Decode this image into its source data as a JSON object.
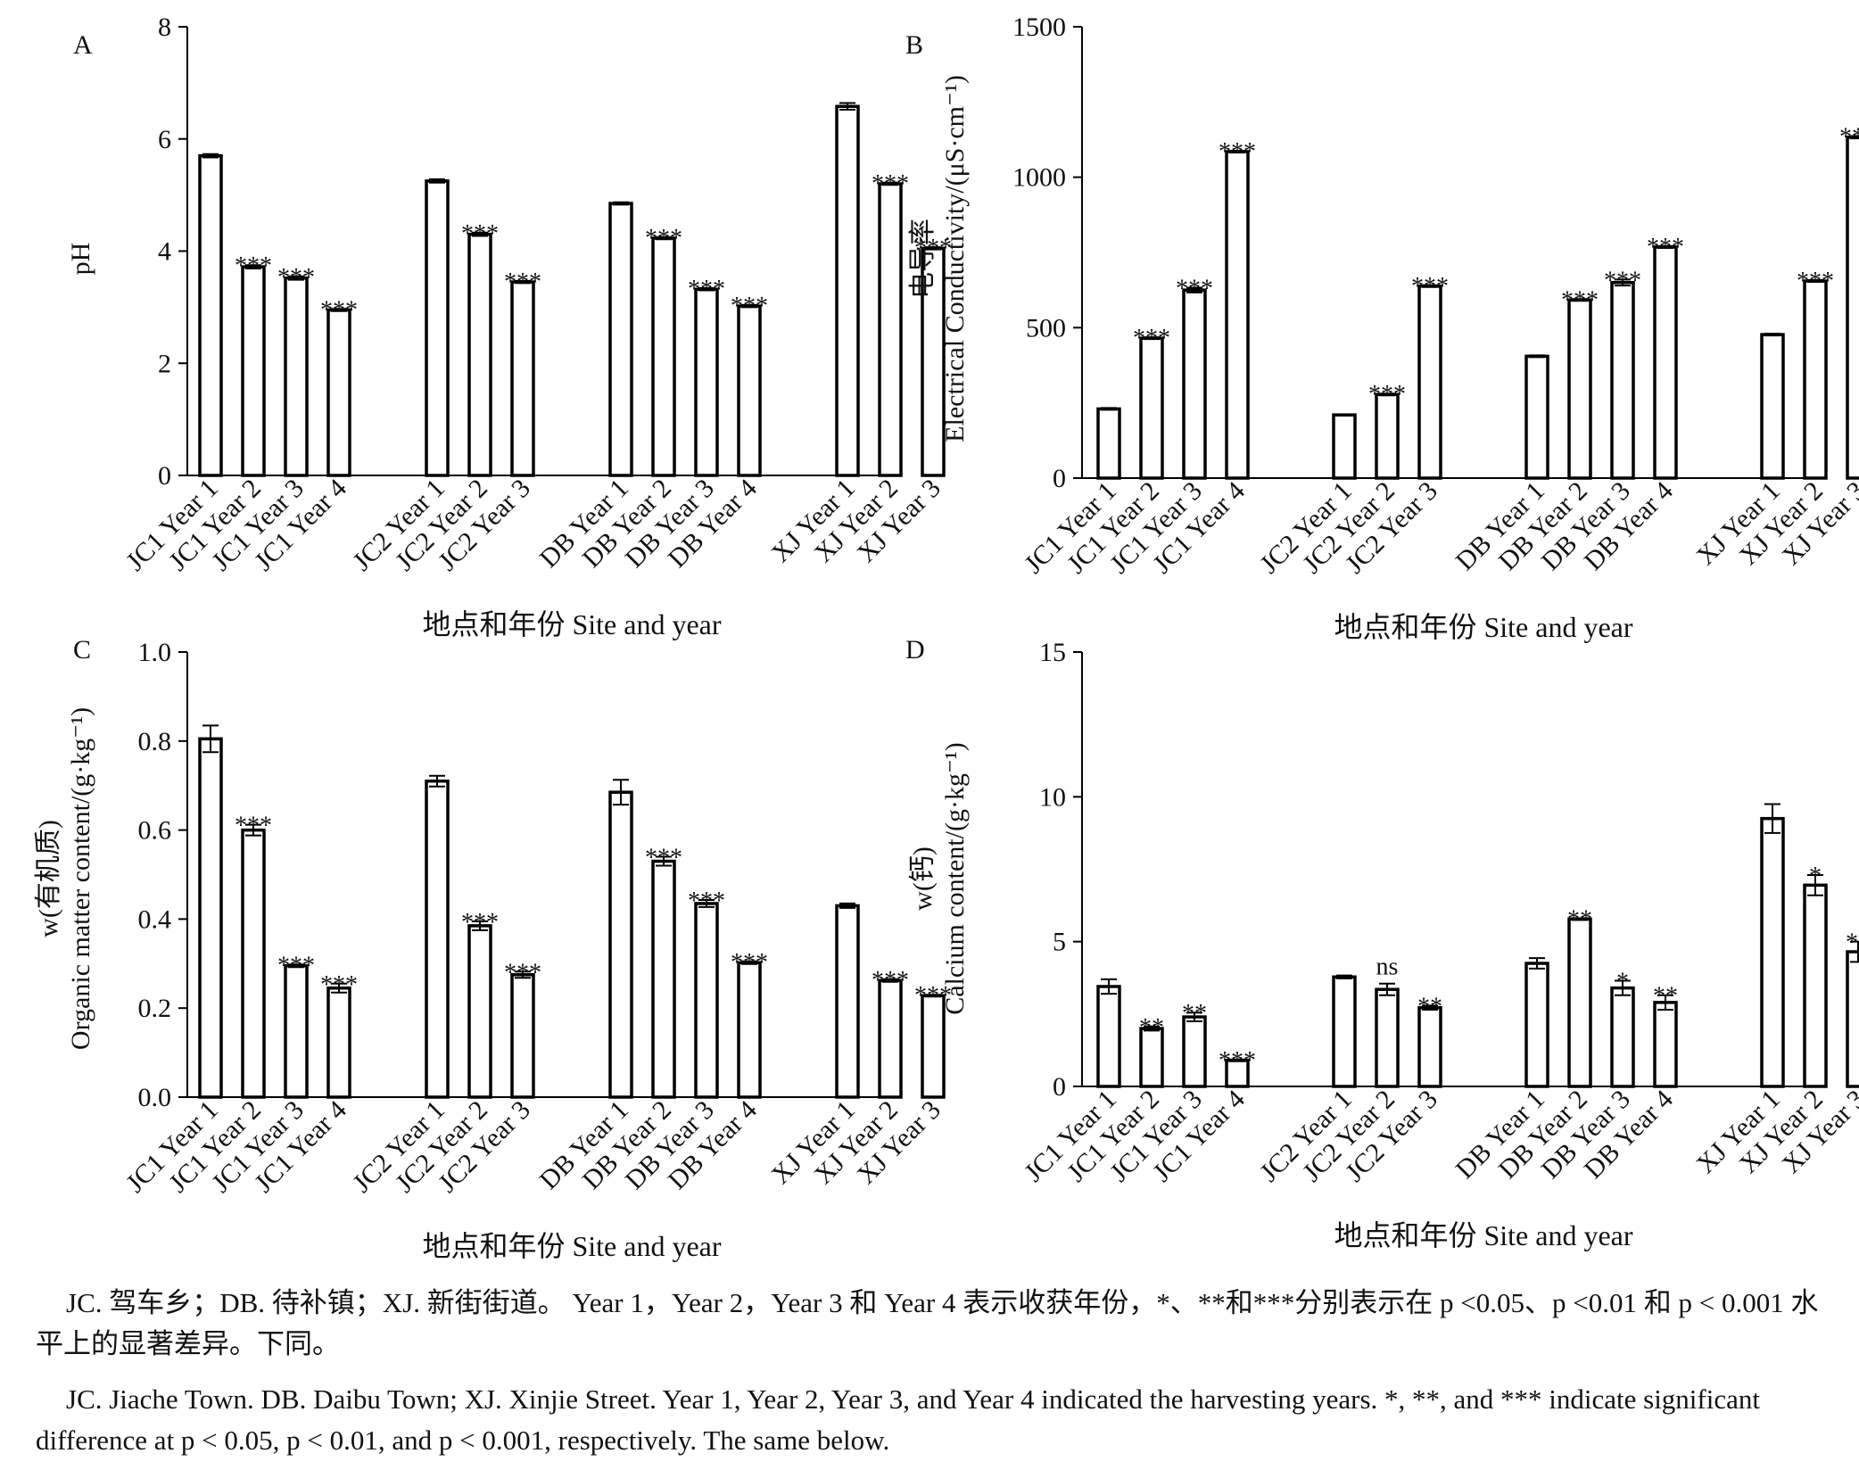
{
  "figure": {
    "xlabel": "地点和年份 Site and year",
    "panels": [
      {
        "letter": "A",
        "ylabel": [
          "pH"
        ],
        "chart_data": {
          "type": "bar",
          "ylim": [
            0,
            8
          ],
          "yticks": [
            0,
            2,
            4,
            6,
            8
          ],
          "ytick_labels": [
            "0",
            "2",
            "4",
            "6",
            "8"
          ],
          "groups": [
            {
              "site": "JC1",
              "bars": [
                {
                  "label": "JC1 Year 1",
                  "value": 5.7,
                  "err": 0.03,
                  "sig": ""
                },
                {
                  "label": "JC1 Year 2",
                  "value": 3.72,
                  "err": 0.03,
                  "sig": "***"
                },
                {
                  "label": "JC1 Year 3",
                  "value": 3.52,
                  "err": 0.03,
                  "sig": "***"
                },
                {
                  "label": "JC1 Year 4",
                  "value": 2.95,
                  "err": 0.02,
                  "sig": "***"
                }
              ]
            },
            {
              "site": "JC2",
              "bars": [
                {
                  "label": "JC2 Year 1",
                  "value": 5.25,
                  "err": 0.03,
                  "sig": ""
                },
                {
                  "label": "JC2 Year 2",
                  "value": 4.3,
                  "err": 0.03,
                  "sig": "***"
                },
                {
                  "label": "JC2 Year 3",
                  "value": 3.45,
                  "err": 0.02,
                  "sig": "***"
                }
              ]
            },
            {
              "site": "DB",
              "bars": [
                {
                  "label": "DB Year 1",
                  "value": 4.85,
                  "err": 0.02,
                  "sig": ""
                },
                {
                  "label": "DB Year 2",
                  "value": 4.23,
                  "err": 0.02,
                  "sig": "***"
                },
                {
                  "label": "DB Year 3",
                  "value": 3.32,
                  "err": 0.02,
                  "sig": "***"
                },
                {
                  "label": "DB Year 4",
                  "value": 3.02,
                  "err": 0.02,
                  "sig": "***"
                }
              ]
            },
            {
              "site": "XJ",
              "bars": [
                {
                  "label": "XJ Year 1",
                  "value": 6.58,
                  "err": 0.06,
                  "sig": ""
                },
                {
                  "label": "XJ Year 2",
                  "value": 5.2,
                  "err": 0.02,
                  "sig": "***"
                },
                {
                  "label": "XJ Year 3",
                  "value": 4.05,
                  "err": 0.02,
                  "sig": "***"
                }
              ]
            }
          ]
        }
      },
      {
        "letter": "B",
        "ylabel": [
          "Electrical Conductivity/(μS·cm⁻¹)",
          "电导率"
        ],
        "chart_data": {
          "type": "bar",
          "ylim": [
            0,
            1500
          ],
          "yticks": [
            0,
            500,
            1000,
            1500
          ],
          "ytick_labels": [
            "0",
            "500",
            "1000",
            "1500"
          ],
          "groups": [
            {
              "site": "JC1",
              "bars": [
                {
                  "label": "JC1 Year 1",
                  "value": 230,
                  "err": 3,
                  "sig": ""
                },
                {
                  "label": "JC1 Year 2",
                  "value": 465,
                  "err": 3,
                  "sig": "***"
                },
                {
                  "label": "JC1 Year 3",
                  "value": 625,
                  "err": 8,
                  "sig": "***"
                },
                {
                  "label": "JC1 Year 4",
                  "value": 1085,
                  "err": 3,
                  "sig": "***"
                }
              ]
            },
            {
              "site": "JC2",
              "bars": [
                {
                  "label": "JC2 Year 1",
                  "value": 210,
                  "err": 2,
                  "sig": ""
                },
                {
                  "label": "JC2 Year 2",
                  "value": 278,
                  "err": 3,
                  "sig": "***"
                },
                {
                  "label": "JC2 Year 3",
                  "value": 638,
                  "err": 3,
                  "sig": "***"
                }
              ]
            },
            {
              "site": "DB",
              "bars": [
                {
                  "label": "DB Year 1",
                  "value": 405,
                  "err": 3,
                  "sig": ""
                },
                {
                  "label": "DB Year 2",
                  "value": 592,
                  "err": 3,
                  "sig": "***"
                },
                {
                  "label": "DB Year 3",
                  "value": 650,
                  "err": 10,
                  "sig": "***"
                },
                {
                  "label": "DB Year 4",
                  "value": 768,
                  "err": 3,
                  "sig": "***"
                }
              ]
            },
            {
              "site": "XJ",
              "bars": [
                {
                  "label": "XJ Year 1",
                  "value": 477,
                  "err": 3,
                  "sig": ""
                },
                {
                  "label": "XJ Year 2",
                  "value": 655,
                  "err": 3,
                  "sig": "***"
                },
                {
                  "label": "XJ Year 3",
                  "value": 1133,
                  "err": 4,
                  "sig": "***"
                }
              ]
            }
          ]
        }
      },
      {
        "letter": "C",
        "ylabel": [
          "Organic matter content/(g·kg⁻¹)",
          "w(有机质)"
        ],
        "chart_data": {
          "type": "bar",
          "ylim": [
            0,
            1.0
          ],
          "yticks": [
            0,
            0.2,
            0.4,
            0.6,
            0.8,
            1.0
          ],
          "ytick_labels": [
            "0.0",
            "0.2",
            "0.4",
            "0.6",
            "0.8",
            "1.0"
          ],
          "groups": [
            {
              "site": "JC1",
              "bars": [
                {
                  "label": "JC1 Year 1",
                  "value": 0.805,
                  "err": 0.03,
                  "sig": ""
                },
                {
                  "label": "JC1 Year 2",
                  "value": 0.6,
                  "err": 0.012,
                  "sig": "***"
                },
                {
                  "label": "JC1 Year 3",
                  "value": 0.295,
                  "err": 0.003,
                  "sig": "***"
                },
                {
                  "label": "JC1 Year 4",
                  "value": 0.245,
                  "err": 0.01,
                  "sig": "***"
                }
              ]
            },
            {
              "site": "JC2",
              "bars": [
                {
                  "label": "JC2 Year 1",
                  "value": 0.71,
                  "err": 0.012,
                  "sig": ""
                },
                {
                  "label": "JC2 Year 2",
                  "value": 0.385,
                  "err": 0.01,
                  "sig": "***"
                },
                {
                  "label": "JC2 Year 3",
                  "value": 0.275,
                  "err": 0.007,
                  "sig": "***"
                }
              ]
            },
            {
              "site": "DB",
              "bars": [
                {
                  "label": "DB Year 1",
                  "value": 0.685,
                  "err": 0.028,
                  "sig": ""
                },
                {
                  "label": "DB Year 2",
                  "value": 0.53,
                  "err": 0.01,
                  "sig": "***"
                },
                {
                  "label": "DB Year 3",
                  "value": 0.435,
                  "err": 0.008,
                  "sig": "***"
                },
                {
                  "label": "DB Year 4",
                  "value": 0.302,
                  "err": 0.003,
                  "sig": "***"
                }
              ]
            },
            {
              "site": "XJ",
              "bars": [
                {
                  "label": "XJ Year 1",
                  "value": 0.43,
                  "err": 0.005,
                  "sig": ""
                },
                {
                  "label": "XJ Year 2",
                  "value": 0.262,
                  "err": 0.003,
                  "sig": "***"
                },
                {
                  "label": "XJ Year 3",
                  "value": 0.228,
                  "err": 0.002,
                  "sig": "***"
                }
              ]
            }
          ]
        }
      },
      {
        "letter": "D",
        "ylabel": [
          "Calcium content/(g·kg⁻¹)",
          "w(钙)"
        ],
        "chart_data": {
          "type": "bar",
          "ylim": [
            0,
            15
          ],
          "yticks": [
            0,
            5,
            10,
            15
          ],
          "ytick_labels": [
            "0",
            "5",
            "10",
            "15"
          ],
          "groups": [
            {
              "site": "JC1",
              "bars": [
                {
                  "label": "JC1 Year 1",
                  "value": 3.45,
                  "err": 0.25,
                  "sig": ""
                },
                {
                  "label": "JC1 Year 2",
                  "value": 2.0,
                  "err": 0.07,
                  "sig": "**"
                },
                {
                  "label": "JC1 Year 3",
                  "value": 2.4,
                  "err": 0.15,
                  "sig": "**"
                },
                {
                  "label": "JC1 Year 4",
                  "value": 0.9,
                  "err": 0.03,
                  "sig": "***"
                }
              ]
            },
            {
              "site": "JC2",
              "bars": [
                {
                  "label": "JC2 Year 1",
                  "value": 3.78,
                  "err": 0.05,
                  "sig": ""
                },
                {
                  "label": "JC2 Year 2",
                  "value": 3.35,
                  "err": 0.2,
                  "sig": "ns"
                },
                {
                  "label": "JC2 Year 3",
                  "value": 2.72,
                  "err": 0.07,
                  "sig": "**"
                }
              ]
            },
            {
              "site": "DB",
              "bars": [
                {
                  "label": "DB Year 1",
                  "value": 4.25,
                  "err": 0.18,
                  "sig": ""
                },
                {
                  "label": "DB Year 2",
                  "value": 5.78,
                  "err": 0.03,
                  "sig": "**"
                },
                {
                  "label": "DB Year 3",
                  "value": 3.4,
                  "err": 0.25,
                  "sig": "*"
                },
                {
                  "label": "DB Year 4",
                  "value": 2.9,
                  "err": 0.25,
                  "sig": "**"
                }
              ]
            },
            {
              "site": "XJ",
              "bars": [
                {
                  "label": "XJ Year 1",
                  "value": 9.25,
                  "err": 0.5,
                  "sig": ""
                },
                {
                  "label": "XJ Year 2",
                  "value": 6.95,
                  "err": 0.35,
                  "sig": "*"
                },
                {
                  "label": "XJ Year 3",
                  "value": 4.65,
                  "err": 0.35,
                  "sig": "**"
                }
              ]
            }
          ]
        }
      }
    ]
  },
  "caption": {
    "cn": "JC. 驾车乡；DB. 待补镇；XJ. 新街街道。 Year 1，Year 2，Year 3 和 Year 4 表示收获年份，*、**和***分别表示在 p <0.05、p <0.01 和 p < 0.001 水平上的显著差异。下同。",
    "en": "JC. Jiache Town. DB. Daibu Town; XJ. Xinjie Street. Year 1, Year 2, Year 3, and Year 4 indicated the harvesting years. *, **, and *** indicate significant difference at p < 0.05, p < 0.01, and p < 0.001, respectively. The same below."
  }
}
